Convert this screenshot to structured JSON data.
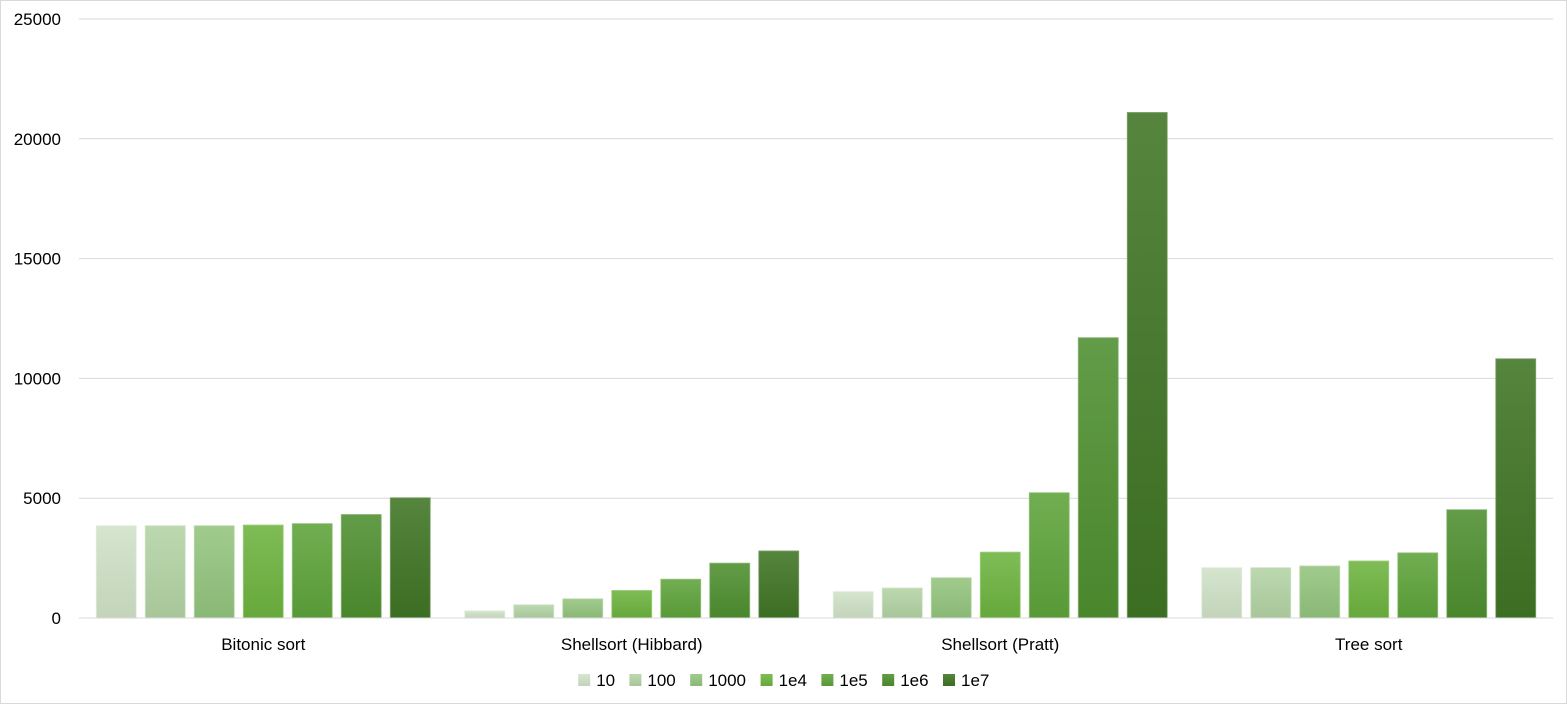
{
  "chart_data": {
    "type": "bar",
    "title": "",
    "xlabel": "",
    "ylabel": "",
    "ylim": [
      0,
      25000
    ],
    "yticks": [
      0,
      5000,
      10000,
      15000,
      20000,
      25000
    ],
    "grid": true,
    "legend_position": "bottom",
    "categories": [
      "Bitonic sort",
      "Shellsort (Hibbard)",
      "Shellsort (Pratt)",
      "Tree sort"
    ],
    "series": [
      {
        "name": "10",
        "color": "#cfe2c7",
        "values": [
          3850,
          300,
          1100,
          2100
        ]
      },
      {
        "name": "100",
        "color": "#b3d3a4",
        "values": [
          3850,
          550,
          1250,
          2100
        ]
      },
      {
        "name": "1000",
        "color": "#93c47d",
        "values": [
          3850,
          800,
          1680,
          2170
        ]
      },
      {
        "name": "1e4",
        "color": "#6db33f",
        "values": [
          3880,
          1150,
          2750,
          2380
        ]
      },
      {
        "name": "1e5",
        "color": "#5ea33a",
        "values": [
          3940,
          1620,
          5230,
          2720
        ]
      },
      {
        "name": "1e6",
        "color": "#4e8f2f",
        "values": [
          4320,
          2290,
          11700,
          4520
        ]
      },
      {
        "name": "1e7",
        "color": "#3f7424",
        "values": [
          5020,
          2800,
          21100,
          10820
        ]
      }
    ]
  }
}
